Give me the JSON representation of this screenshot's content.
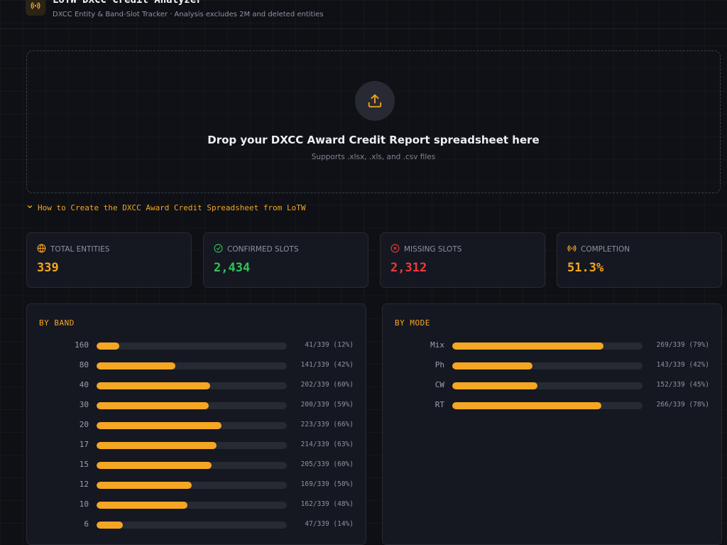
{
  "header": {
    "title": "LoTW DXCC Credit Analyzer",
    "subtitle": "DXCC Entity & Band-Slot Tracker · Analysis excludes 2M and deleted entities"
  },
  "dropzone": {
    "title": "Drop your DXCC Award Credit Report spreadsheet here",
    "subtitle": "Supports .xlsx, .xls, and .csv files"
  },
  "howto": {
    "label": "How to Create the DXCC Award Credit Spreadsheet from LoTW"
  },
  "stats": [
    {
      "label": "TOTAL ENTITIES",
      "value": "339",
      "icon": "globe-icon",
      "color": "#f5a623"
    },
    {
      "label": "CONFIRMED SLOTS",
      "value": "2,434",
      "icon": "check-circle-icon",
      "color": "#34c15b"
    },
    {
      "label": "MISSING SLOTS",
      "value": "2,312",
      "icon": "x-circle-icon",
      "color": "#ef3b3b"
    },
    {
      "label": "COMPLETION",
      "value": "51.3%",
      "icon": "radio-signal-icon",
      "color": "#f5a623"
    }
  ],
  "by_band": {
    "title": "BY BAND",
    "rows": [
      {
        "label": "160",
        "count": 41,
        "total": 339,
        "text": "41/339 (12%)"
      },
      {
        "label": "80",
        "count": 141,
        "total": 339,
        "text": "141/339 (42%)"
      },
      {
        "label": "40",
        "count": 202,
        "total": 339,
        "text": "202/339 (60%)"
      },
      {
        "label": "30",
        "count": 200,
        "total": 339,
        "text": "200/339 (59%)"
      },
      {
        "label": "20",
        "count": 223,
        "total": 339,
        "text": "223/339 (66%)"
      },
      {
        "label": "17",
        "count": 214,
        "total": 339,
        "text": "214/339 (63%)"
      },
      {
        "label": "15",
        "count": 205,
        "total": 339,
        "text": "205/339 (60%)"
      },
      {
        "label": "12",
        "count": 169,
        "total": 339,
        "text": "169/339 (50%)"
      },
      {
        "label": "10",
        "count": 162,
        "total": 339,
        "text": "162/339 (48%)"
      },
      {
        "label": "6",
        "count": 47,
        "total": 339,
        "text": "47/339 (14%)"
      }
    ]
  },
  "by_mode": {
    "title": "BY MODE",
    "rows": [
      {
        "label": "Mix",
        "count": 269,
        "total": 339,
        "text": "269/339 (79%)"
      },
      {
        "label": "Ph",
        "count": 143,
        "total": 339,
        "text": "143/339 (42%)"
      },
      {
        "label": "CW",
        "count": 152,
        "total": 339,
        "text": "152/339 (45%)"
      },
      {
        "label": "RT",
        "count": 266,
        "total": 339,
        "text": "266/339 (78%)"
      }
    ]
  }
}
